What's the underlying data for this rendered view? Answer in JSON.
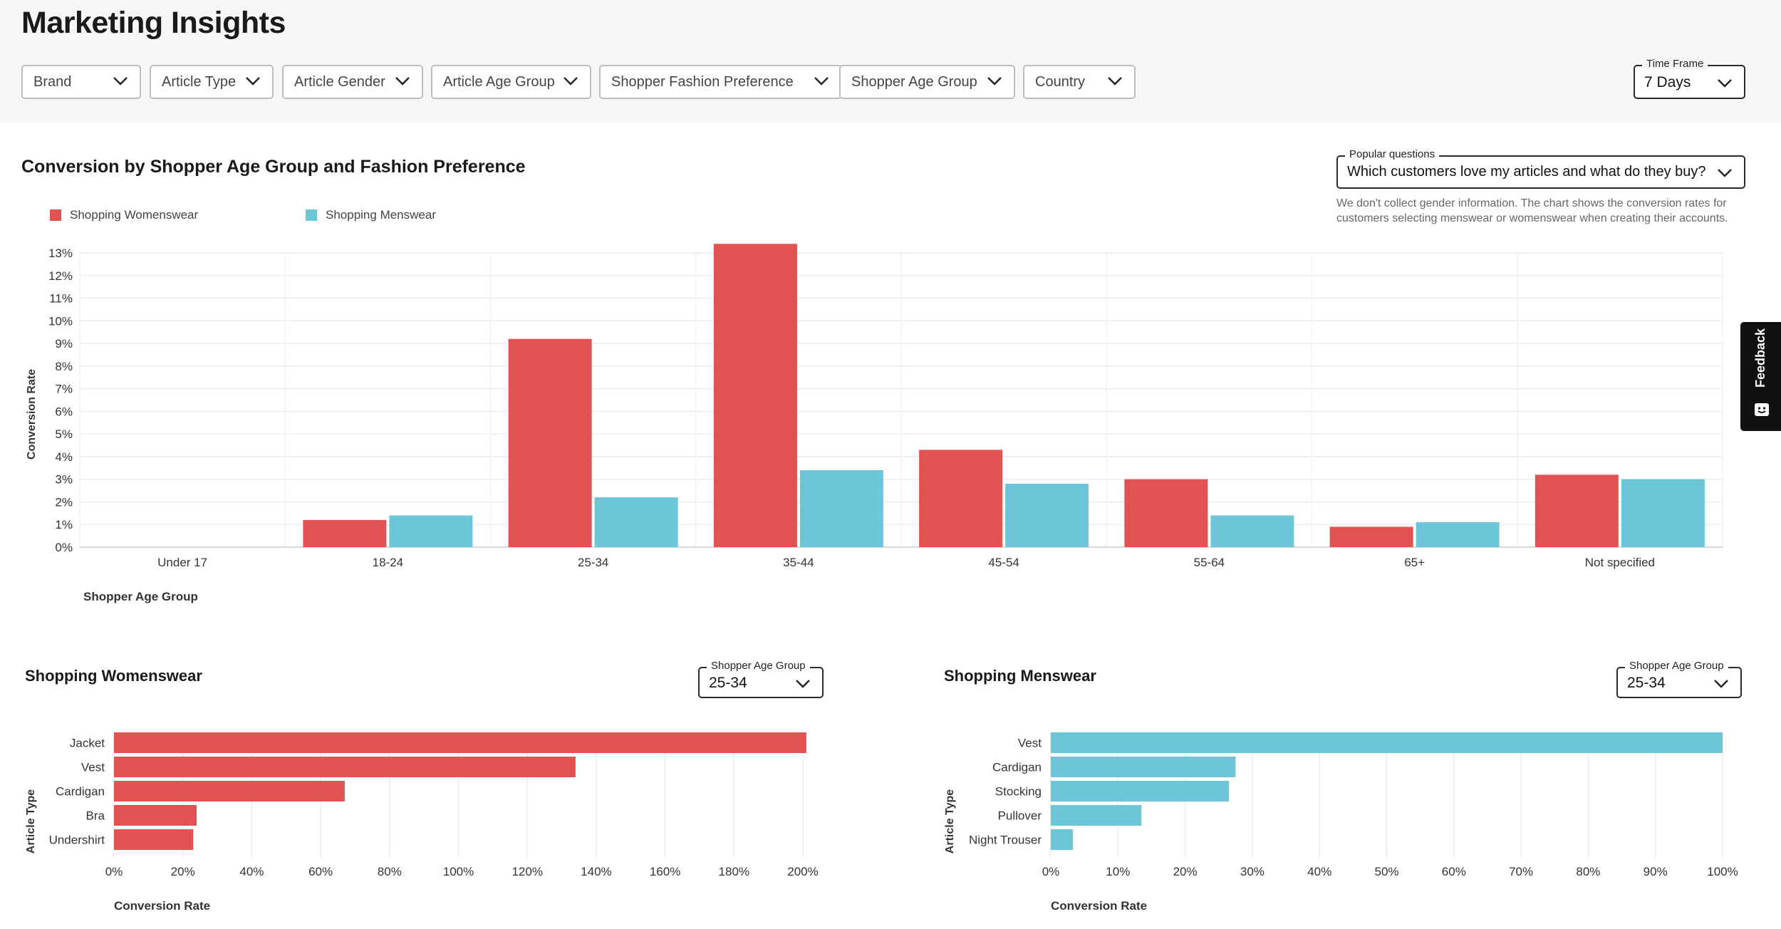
{
  "page": {
    "title": "Marketing Insights"
  },
  "filters": [
    {
      "label": "Brand",
      "name": "brand-filter"
    },
    {
      "label": "Article Type",
      "name": "article-type-filter"
    },
    {
      "label": "Article Gender",
      "name": "article-gender-filter"
    },
    {
      "label": "Article Age Group",
      "name": "article-age-group-filter"
    },
    {
      "label": "Shopper Fashion Preference",
      "name": "shopper-fashion-preference-filter"
    },
    {
      "label": "Shopper Age Group",
      "name": "shopper-age-group-filter"
    },
    {
      "label": "Country",
      "name": "country-filter"
    }
  ],
  "time_frame": {
    "legend": "Time Frame",
    "value": "7 Days"
  },
  "popular_questions": {
    "legend": "Popular questions",
    "value": "Which customers love my articles and what do they buy?",
    "note": "We don't collect gender information. The chart shows the conversion rates for customers selecting menswear or womenswear when creating their accounts."
  },
  "colors": {
    "womenswear": "#e35252",
    "menswear": "#6cc6d8",
    "header_bg": "#f6f6f6"
  },
  "feedback": {
    "label": "Feedback",
    "icon": "smiley-icon"
  },
  "main_chart": {
    "heading": "Conversion by Shopper Age Group and Fashion Preference",
    "chart_data": {
      "type": "bar",
      "categories": [
        "Under 17",
        "18-24",
        "25-34",
        "35-44",
        "45-54",
        "55-64",
        "65+",
        "Not specified"
      ],
      "series": [
        {
          "name": "Shopping Womenswear",
          "color": "#e35252",
          "values": [
            0,
            1.2,
            9.2,
            13.4,
            4.3,
            3.0,
            0.9,
            3.2
          ]
        },
        {
          "name": "Shopping Menswear",
          "color": "#6cc6d8",
          "values": [
            0,
            1.4,
            2.2,
            3.4,
            2.8,
            1.4,
            1.1,
            3.0
          ]
        }
      ],
      "xlabel": "Shopper Age Group",
      "ylabel": "Conversion Rate",
      "ylim": [
        0,
        13
      ],
      "yticks": [
        "0%",
        "1%",
        "2%",
        "3%",
        "4%",
        "5%",
        "6%",
        "7%",
        "8%",
        "9%",
        "10%",
        "11%",
        "12%",
        "13%"
      ],
      "grid": true,
      "legend_position": "top-left"
    }
  },
  "womenswear_panel": {
    "heading": "Shopping Womenswear",
    "select": {
      "legend": "Shopper Age Group",
      "value": "25-34"
    },
    "chart_data": {
      "type": "bar",
      "orientation": "horizontal",
      "categories": [
        "Jacket",
        "Vest",
        "Cardigan",
        "Bra",
        "Undershirt"
      ],
      "values": [
        201,
        134,
        67,
        24,
        23
      ],
      "color": "#e35252",
      "xlabel": "Conversion Rate",
      "ylabel": "Article Type",
      "xlim": [
        0,
        200
      ],
      "xticks": [
        "0%",
        "20%",
        "40%",
        "60%",
        "80%",
        "100%",
        "120%",
        "140%",
        "160%",
        "180%",
        "200%"
      ],
      "grid": true
    }
  },
  "menswear_panel": {
    "heading": "Shopping Menswear",
    "select": {
      "legend": "Shopper Age Group",
      "value": "25-34"
    },
    "chart_data": {
      "type": "bar",
      "orientation": "horizontal",
      "categories": [
        "Vest",
        "Cardigan",
        "Stocking",
        "Pullover",
        "Night Trouser"
      ],
      "values": [
        100,
        27.5,
        26.5,
        13.5,
        3.3
      ],
      "color": "#6cc6d8",
      "xlabel": "Conversion Rate",
      "ylabel": "Article Type",
      "xlim": [
        0,
        100
      ],
      "xticks": [
        "0%",
        "10%",
        "20%",
        "30%",
        "40%",
        "50%",
        "60%",
        "70%",
        "80%",
        "90%",
        "100%"
      ],
      "grid": true
    }
  }
}
